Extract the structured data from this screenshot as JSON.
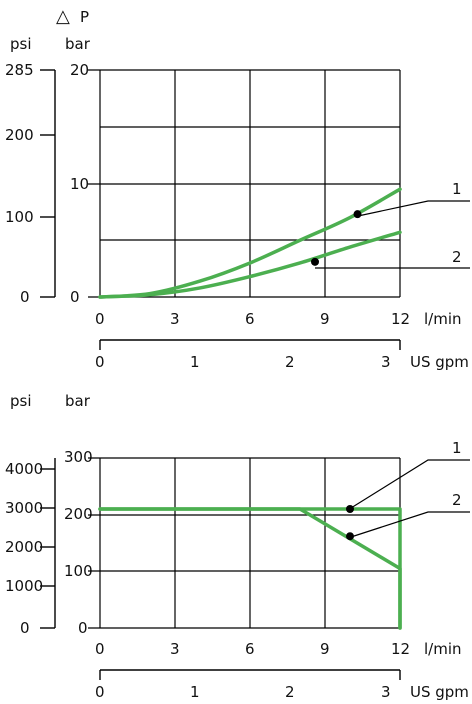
{
  "chart_data": [
    {
      "type": "line",
      "title_symbol": "△",
      "title_letter": "P",
      "unit_left": "psi",
      "unit_right": "bar",
      "xlabel": "l/min",
      "xlabel2": "US gpm",
      "xlim": [
        0,
        12
      ],
      "ylim": [
        0,
        20
      ],
      "x_ticks": [
        "0",
        "3",
        "6",
        "9",
        "12"
      ],
      "x2_ticks": [
        "0",
        "1",
        "2",
        "3"
      ],
      "y_bar_ticks": [
        "0",
        "10",
        "20"
      ],
      "y_psi_ticks": [
        "0",
        "100",
        "200",
        "285"
      ],
      "grid": true,
      "series": [
        {
          "name": "1",
          "color": "#4caf50",
          "x": [
            0,
            2,
            4,
            6,
            8,
            10,
            12
          ],
          "y": [
            0,
            0.3,
            1.4,
            3.0,
            5.0,
            7.0,
            9.5
          ]
        },
        {
          "name": "2",
          "color": "#4caf50",
          "x": [
            0,
            2,
            4,
            6,
            8,
            10,
            12
          ],
          "y": [
            0,
            0.2,
            0.8,
            1.8,
            3.0,
            4.4,
            5.7
          ]
        }
      ],
      "markers": [
        {
          "series": "1",
          "x": 10.3,
          "y": 7.3
        },
        {
          "series": "2",
          "x": 8.6,
          "y": 3.1
        }
      ]
    },
    {
      "type": "line",
      "unit_left": "psi",
      "unit_right": "bar",
      "xlabel": "l/min",
      "xlabel2": "US gpm",
      "xlim": [
        0,
        12
      ],
      "ylim": [
        0,
        300
      ],
      "x_ticks": [
        "0",
        "3",
        "6",
        "9",
        "12"
      ],
      "x2_ticks": [
        "0",
        "1",
        "2",
        "3"
      ],
      "y_bar_ticks": [
        "0",
        "100",
        "200",
        "300"
      ],
      "y_psi_ticks": [
        "0",
        "1000",
        "2000",
        "3000",
        "4000"
      ],
      "grid": true,
      "series": [
        {
          "name": "1",
          "color": "#4caf50",
          "x": [
            0,
            8.2,
            12,
            12
          ],
          "y": [
            210,
            210,
            210,
            0
          ]
        },
        {
          "name": "2",
          "color": "#4caf50",
          "x": [
            0,
            8.0,
            12,
            12
          ],
          "y": [
            210,
            210,
            105,
            0
          ]
        }
      ],
      "markers": [
        {
          "series": "1",
          "x": 10,
          "y": 210
        },
        {
          "series": "2",
          "x": 10,
          "y": 162
        }
      ]
    }
  ]
}
